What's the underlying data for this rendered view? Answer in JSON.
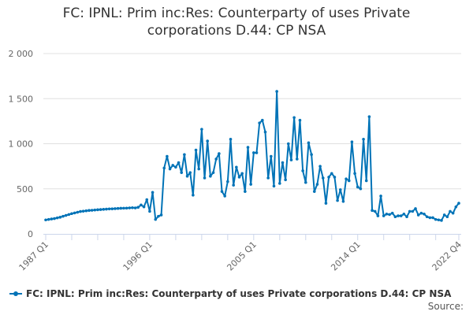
{
  "chart_data": {
    "type": "line",
    "title": "FC: IPNL: Prim inc:Res: Counterparty of uses Private corporations D.44: CP NSA",
    "title_lines": [
      "FC: IPNL: Prim inc:Res: Counterparty of uses Private",
      "corporations D.44: CP NSA"
    ],
    "xlabel": "",
    "ylabel": "",
    "x_start": "1987 Q1",
    "x_end": "2022 Q4",
    "x_tick_labels": [
      "1987 Q1",
      "1996 Q1",
      "2005 Q1",
      "2014 Q1",
      "2022 Q4"
    ],
    "y_tick_labels": [
      "0",
      "500",
      "1 000",
      "1 500",
      "2 000"
    ],
    "ylim": [
      0,
      2000
    ],
    "grid": true,
    "legend_position": "bottom-left",
    "series": [
      {
        "name": "FC: IPNL: Prim inc:Res: Counterparty of uses Private corporations D.44: CP NSA",
        "color": "#0073b7",
        "values": [
          155,
          160,
          165,
          170,
          178,
          185,
          195,
          205,
          215,
          225,
          232,
          240,
          248,
          252,
          256,
          260,
          262,
          265,
          268,
          270,
          272,
          275,
          277,
          278,
          280,
          282,
          284,
          285,
          286,
          288,
          290,
          288,
          295,
          320,
          300,
          380,
          250,
          460,
          160,
          195,
          210,
          730,
          860,
          720,
          760,
          740,
          790,
          680,
          880,
          640,
          680,
          430,
          930,
          720,
          1160,
          620,
          1030,
          640,
          680,
          830,
          890,
          470,
          420,
          580,
          1050,
          540,
          740,
          630,
          670,
          470,
          960,
          550,
          900,
          900,
          1230,
          1260,
          1130,
          620,
          860,
          530,
          1580,
          560,
          790,
          600,
          1000,
          820,
          1290,
          830,
          1260,
          700,
          570,
          1010,
          880,
          470,
          550,
          750,
          620,
          340,
          630,
          670,
          630,
          370,
          490,
          360,
          610,
          590,
          1020,
          670,
          520,
          500,
          1050,
          590,
          1300,
          260,
          250,
          200,
          420,
          200,
          220,
          215,
          230,
          190,
          200,
          200,
          220,
          190,
          250,
          250,
          280,
          210,
          230,
          220,
          190,
          180,
          180,
          160,
          155,
          150,
          210,
          190,
          250,
          230,
          300,
          340
        ]
      }
    ]
  },
  "source_label": "Source:"
}
